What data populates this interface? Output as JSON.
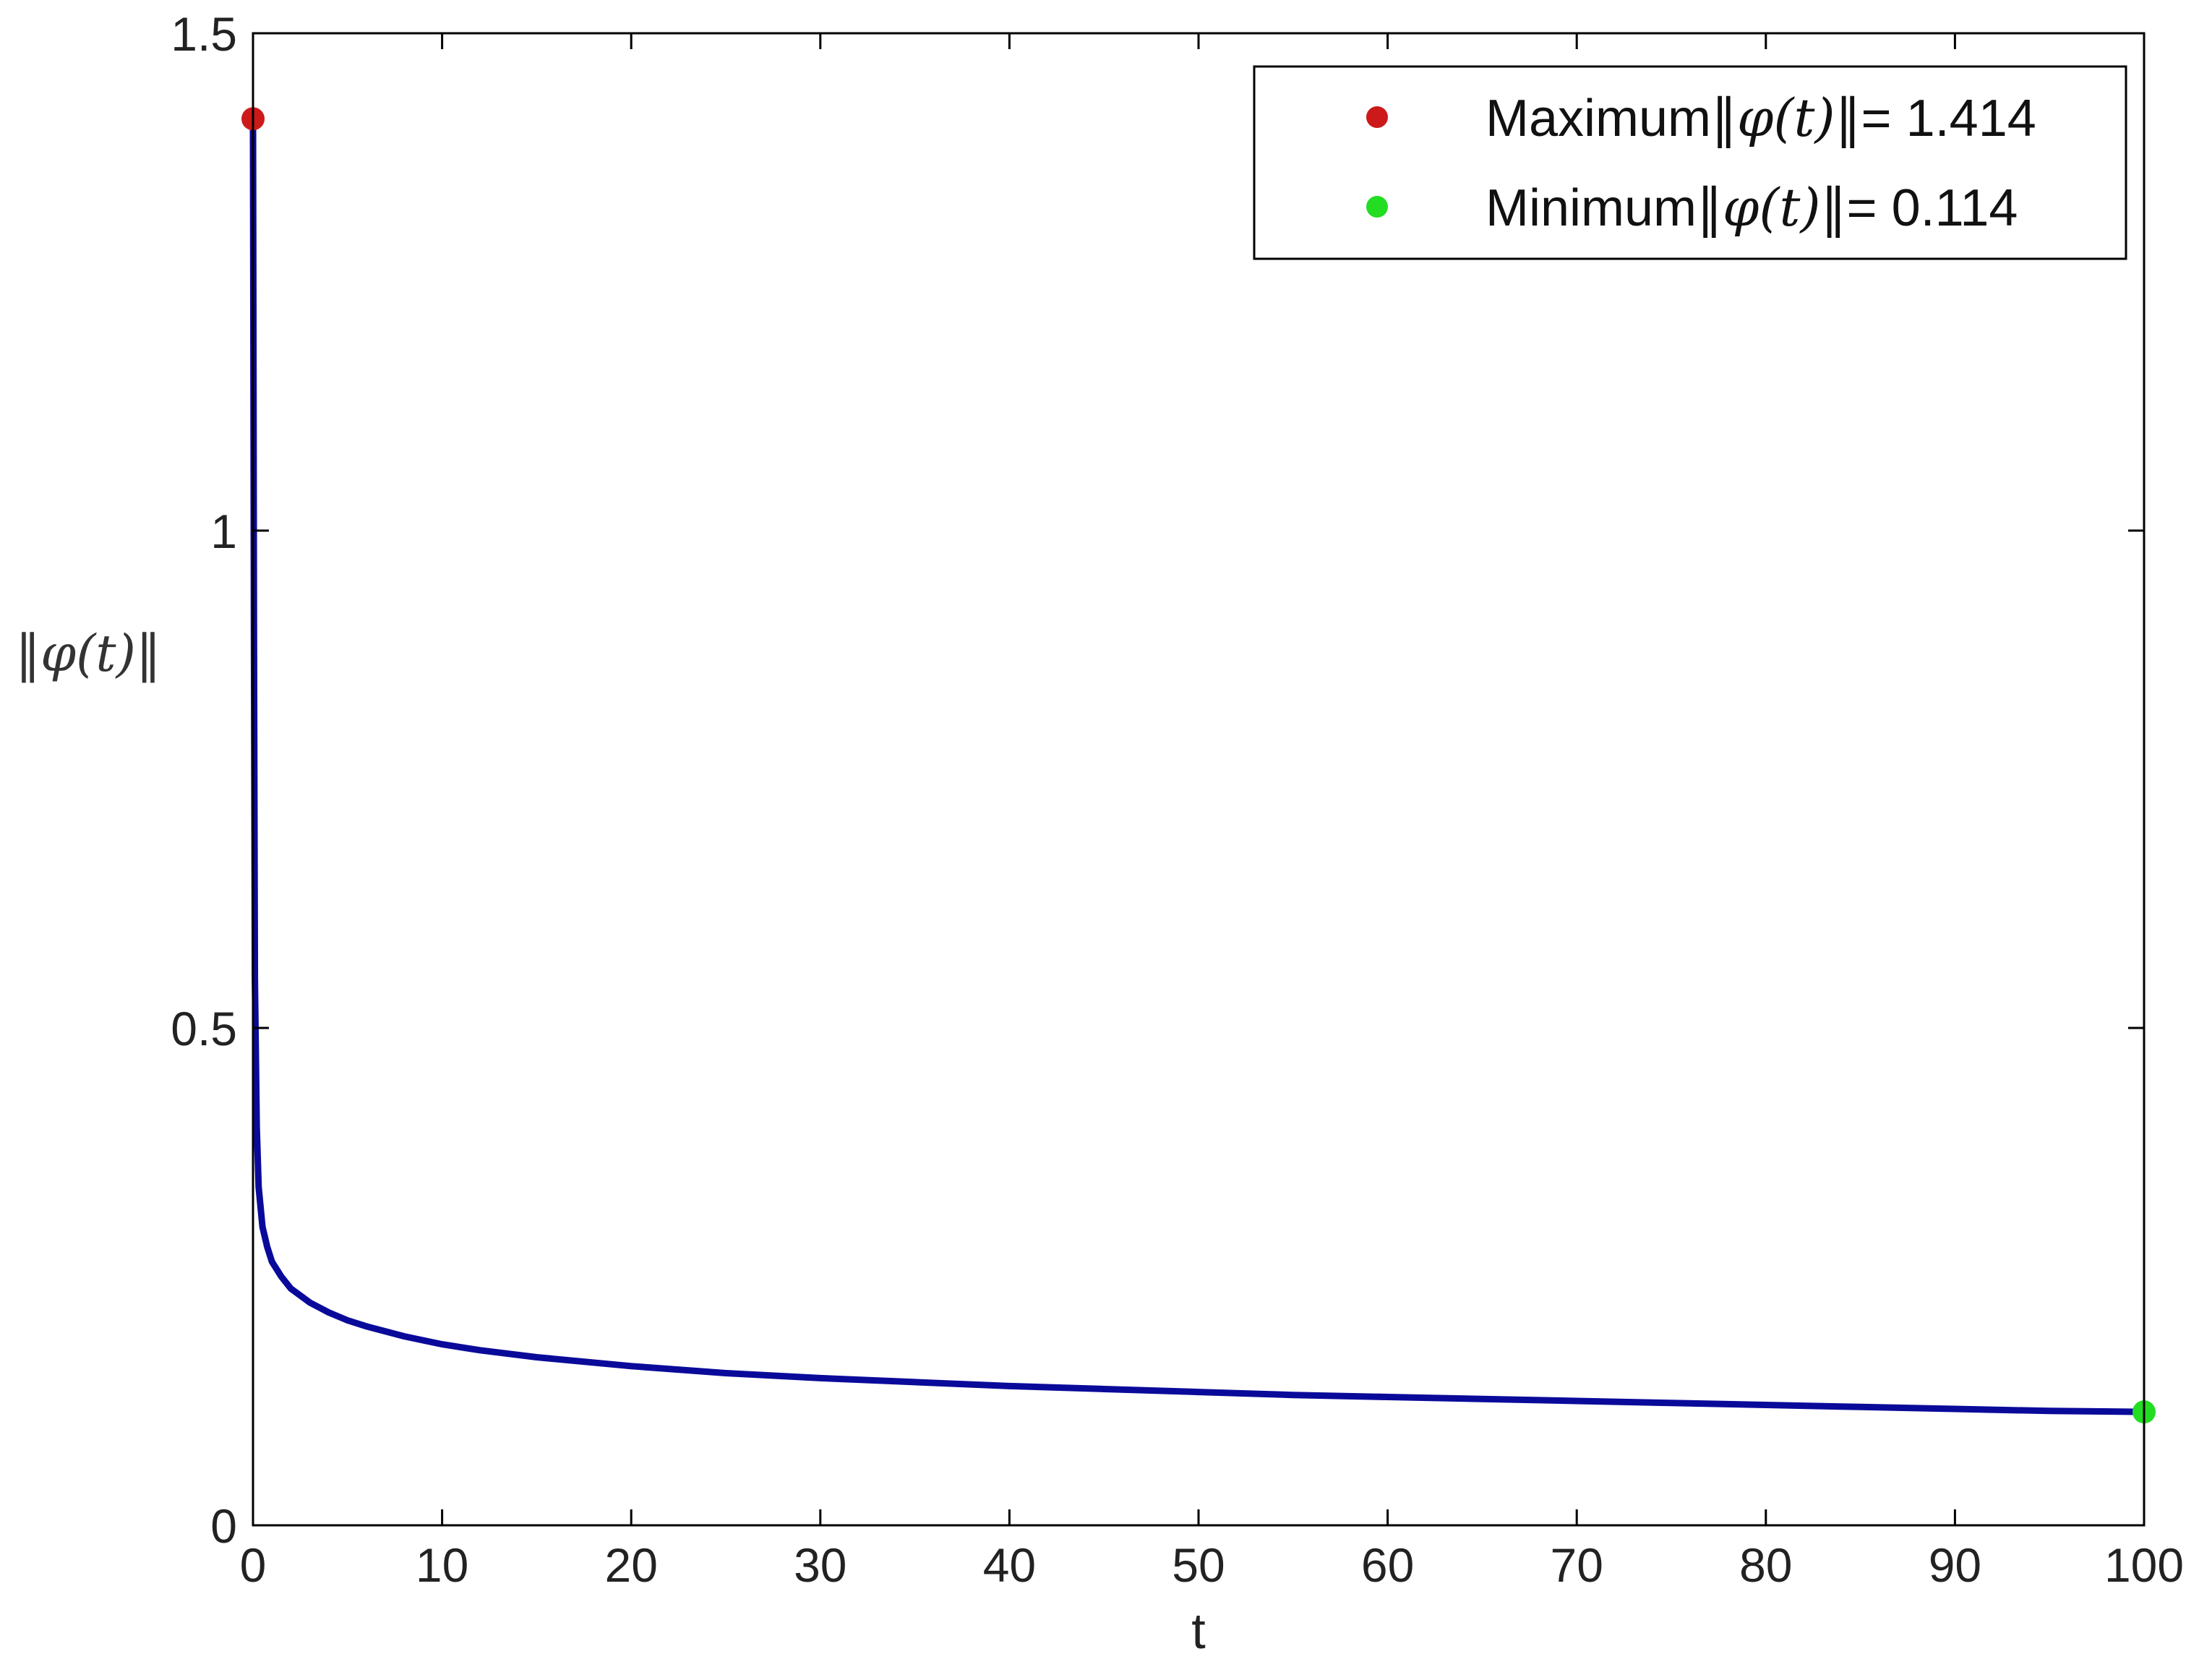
{
  "chart_data": {
    "type": "line",
    "title": "",
    "xlabel": "t",
    "ylabel": "‖φ(t)‖",
    "xlim": [
      0,
      100
    ],
    "ylim": [
      0,
      1.5
    ],
    "xticks": [
      0,
      10,
      20,
      30,
      40,
      50,
      60,
      70,
      80,
      90,
      100
    ],
    "yticks": [
      0,
      0.5,
      1,
      1.5
    ],
    "xtick_labels": [
      "0",
      "10",
      "20",
      "30",
      "40",
      "50",
      "60",
      "70",
      "80",
      "90",
      "100"
    ],
    "ytick_labels": [
      "0",
      "0.5",
      "1",
      "1.5"
    ],
    "grid": false,
    "legend_position": "top-right",
    "series": [
      {
        "color": "#0a0a9a",
        "x": [
          0,
          0.05,
          0.1,
          0.2,
          0.3,
          0.5,
          0.75,
          1,
          1.5,
          2,
          3,
          4,
          5,
          6,
          8,
          10,
          12,
          15,
          20,
          25,
          30,
          35,
          40,
          45,
          50,
          55,
          60,
          65,
          70,
          75,
          80,
          85,
          90,
          95,
          100
        ],
        "y": [
          1.414,
          0.9,
          0.55,
          0.4,
          0.34,
          0.3,
          0.28,
          0.265,
          0.25,
          0.238,
          0.224,
          0.214,
          0.206,
          0.2,
          0.19,
          0.182,
          0.176,
          0.169,
          0.16,
          0.153,
          0.148,
          0.144,
          0.14,
          0.137,
          0.134,
          0.131,
          0.129,
          0.127,
          0.125,
          0.123,
          0.121,
          0.119,
          0.117,
          0.115,
          0.114
        ]
      }
    ],
    "markers": [
      {
        "name": "Maximum",
        "x": 0,
        "y": 1.414,
        "color": "#cc1a1a"
      },
      {
        "name": "Minimum",
        "x": 100,
        "y": 0.114,
        "color": "#22dd22"
      }
    ],
    "legend": [
      {
        "prefix": "Maximum",
        "math": "‖φ(t)‖",
        "suffix": "= 1.414",
        "color": "#cc1a1a"
      },
      {
        "prefix": "Minimum",
        "math": "‖φ(t)‖",
        "suffix": "= 0.114",
        "color": "#22dd22"
      }
    ]
  }
}
